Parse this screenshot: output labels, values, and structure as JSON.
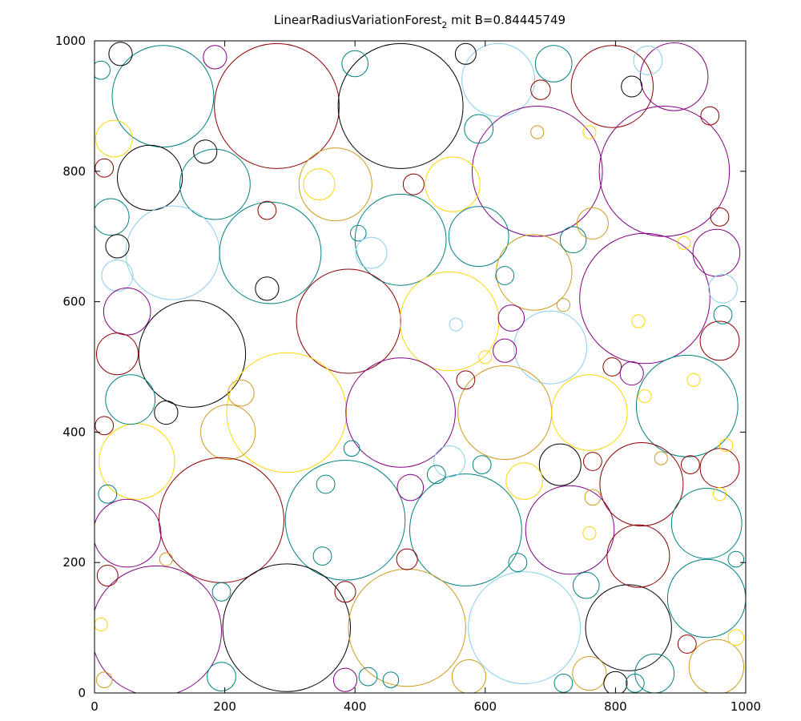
{
  "chart_data": {
    "type": "scatter",
    "title_main": "LinearRadiusVariationForest",
    "title_sub": "2",
    "title_rest": " mit B=0.84445749",
    "xlim": [
      0,
      1000
    ],
    "ylim": [
      0,
      1000
    ],
    "x_ticks": [
      0,
      200,
      400,
      600,
      800,
      1000
    ],
    "y_ticks": [
      0,
      200,
      400,
      600,
      800,
      1000
    ],
    "grid": false,
    "colors": [
      "#000000",
      "#8b0000",
      "#008080",
      "#800080",
      "#cd9b1d",
      "#ffd700",
      "#2f4f4f",
      "#00688b",
      "#b22222",
      "#87ceeb"
    ],
    "circles": [
      [
        105,
        915,
        78,
        2
      ],
      [
        280,
        900,
        96,
        1
      ],
      [
        470,
        900,
        96,
        0
      ],
      [
        620,
        940,
        56,
        9
      ],
      [
        680,
        800,
        100,
        3
      ],
      [
        875,
        800,
        100,
        3
      ],
      [
        795,
        930,
        63,
        1
      ],
      [
        890,
        945,
        52,
        3
      ],
      [
        85,
        790,
        50,
        0
      ],
      [
        185,
        780,
        54,
        2
      ],
      [
        370,
        780,
        56,
        4
      ],
      [
        550,
        780,
        42,
        5
      ],
      [
        470,
        695,
        70,
        2
      ],
      [
        120,
        675,
        72,
        9
      ],
      [
        270,
        675,
        78,
        2
      ],
      [
        590,
        700,
        46,
        2
      ],
      [
        675,
        645,
        58,
        4
      ],
      [
        845,
        605,
        100,
        3
      ],
      [
        150,
        520,
        82,
        0
      ],
      [
        390,
        570,
        80,
        1
      ],
      [
        545,
        570,
        76,
        5
      ],
      [
        700,
        530,
        56,
        9
      ],
      [
        295,
        430,
        92,
        5
      ],
      [
        470,
        430,
        84,
        3
      ],
      [
        630,
        430,
        72,
        4
      ],
      [
        760,
        430,
        58,
        5
      ],
      [
        910,
        440,
        78,
        2
      ],
      [
        65,
        355,
        58,
        5
      ],
      [
        205,
        400,
        42,
        4
      ],
      [
        195,
        265,
        96,
        1
      ],
      [
        385,
        265,
        92,
        2
      ],
      [
        570,
        250,
        86,
        2
      ],
      [
        730,
        250,
        68,
        3
      ],
      [
        840,
        320,
        64,
        1
      ],
      [
        940,
        260,
        54,
        2
      ],
      [
        50,
        245,
        52,
        3
      ],
      [
        95,
        95,
        100,
        3
      ],
      [
        295,
        100,
        98,
        0
      ],
      [
        480,
        100,
        90,
        4
      ],
      [
        660,
        100,
        86,
        9
      ],
      [
        820,
        100,
        66,
        0
      ],
      [
        940,
        145,
        60,
        2
      ],
      [
        835,
        210,
        48,
        1
      ],
      [
        955,
        40,
        42,
        4
      ],
      [
        25,
        730,
        28,
        2
      ],
      [
        30,
        850,
        28,
        5
      ],
      [
        35,
        640,
        24,
        9
      ],
      [
        50,
        585,
        36,
        3
      ],
      [
        35,
        520,
        32,
        1
      ],
      [
        55,
        450,
        38,
        2
      ],
      [
        170,
        830,
        18,
        0
      ],
      [
        40,
        980,
        18,
        0
      ],
      [
        185,
        975,
        18,
        3
      ],
      [
        400,
        965,
        20,
        2
      ],
      [
        570,
        980,
        16,
        0
      ],
      [
        705,
        965,
        28,
        2
      ],
      [
        850,
        970,
        22,
        9
      ],
      [
        685,
        925,
        15,
        1
      ],
      [
        825,
        930,
        16,
        0
      ],
      [
        590,
        865,
        22,
        2
      ],
      [
        945,
        885,
        14,
        1
      ],
      [
        735,
        695,
        20,
        2
      ],
      [
        765,
        720,
        24,
        4
      ],
      [
        960,
        730,
        14,
        1
      ],
      [
        955,
        675,
        36,
        3
      ],
      [
        965,
        620,
        22,
        9
      ],
      [
        960,
        540,
        30,
        1
      ],
      [
        965,
        580,
        14,
        2
      ],
      [
        640,
        575,
        20,
        3
      ],
      [
        630,
        525,
        18,
        3
      ],
      [
        795,
        500,
        14,
        1
      ],
      [
        825,
        490,
        18,
        3
      ],
      [
        570,
        480,
        14,
        1
      ],
      [
        715,
        350,
        32,
        0
      ],
      [
        765,
        355,
        14,
        1
      ],
      [
        545,
        355,
        24,
        9
      ],
      [
        595,
        350,
        14,
        2
      ],
      [
        660,
        325,
        28,
        5
      ],
      [
        525,
        335,
        14,
        2
      ],
      [
        485,
        315,
        20,
        3
      ],
      [
        355,
        320,
        14,
        2
      ],
      [
        395,
        375,
        12,
        2
      ],
      [
        225,
        460,
        20,
        4
      ],
      [
        110,
        430,
        18,
        0
      ],
      [
        15,
        410,
        14,
        1
      ],
      [
        20,
        305,
        14,
        2
      ],
      [
        20,
        180,
        16,
        1
      ],
      [
        110,
        205,
        10,
        4
      ],
      [
        195,
        155,
        14,
        2
      ],
      [
        195,
        25,
        22,
        2
      ],
      [
        385,
        155,
        16,
        1
      ],
      [
        480,
        205,
        16,
        1
      ],
      [
        350,
        210,
        14,
        2
      ],
      [
        575,
        25,
        26,
        4
      ],
      [
        720,
        15,
        14,
        2
      ],
      [
        760,
        30,
        26,
        4
      ],
      [
        800,
        15,
        18,
        0
      ],
      [
        830,
        15,
        14,
        2
      ],
      [
        860,
        30,
        30,
        2
      ],
      [
        755,
        165,
        20,
        2
      ],
      [
        650,
        200,
        14,
        2
      ],
      [
        910,
        75,
        14,
        1
      ],
      [
        985,
        205,
        12,
        2
      ],
      [
        985,
        85,
        12,
        5
      ],
      [
        265,
        620,
        18,
        0
      ],
      [
        35,
        685,
        18,
        0
      ],
      [
        265,
        740,
        14,
        1
      ],
      [
        630,
        640,
        14,
        2
      ],
      [
        405,
        705,
        12,
        2
      ],
      [
        425,
        675,
        24,
        9
      ],
      [
        345,
        780,
        24,
        5
      ],
      [
        490,
        780,
        16,
        1
      ],
      [
        385,
        20,
        18,
        3
      ],
      [
        420,
        25,
        14,
        2
      ],
      [
        455,
        20,
        12,
        2
      ],
      [
        15,
        805,
        14,
        1
      ],
      [
        10,
        955,
        14,
        2
      ],
      [
        680,
        860,
        10,
        4
      ],
      [
        760,
        860,
        10,
        5
      ],
      [
        905,
        690,
        10,
        5
      ],
      [
        920,
        480,
        10,
        5
      ],
      [
        845,
        455,
        10,
        5
      ],
      [
        915,
        350,
        14,
        1
      ],
      [
        960,
        345,
        30,
        1
      ],
      [
        970,
        380,
        10,
        5
      ],
      [
        960,
        305,
        10,
        5
      ],
      [
        835,
        570,
        10,
        5
      ],
      [
        760,
        245,
        10,
        5
      ],
      [
        870,
        360,
        10,
        4
      ],
      [
        765,
        300,
        12,
        4
      ],
      [
        600,
        515,
        10,
        5
      ],
      [
        555,
        565,
        10,
        9
      ],
      [
        720,
        595,
        10,
        4
      ],
      [
        15,
        20,
        12,
        4
      ],
      [
        10,
        105,
        10,
        5
      ]
    ]
  }
}
